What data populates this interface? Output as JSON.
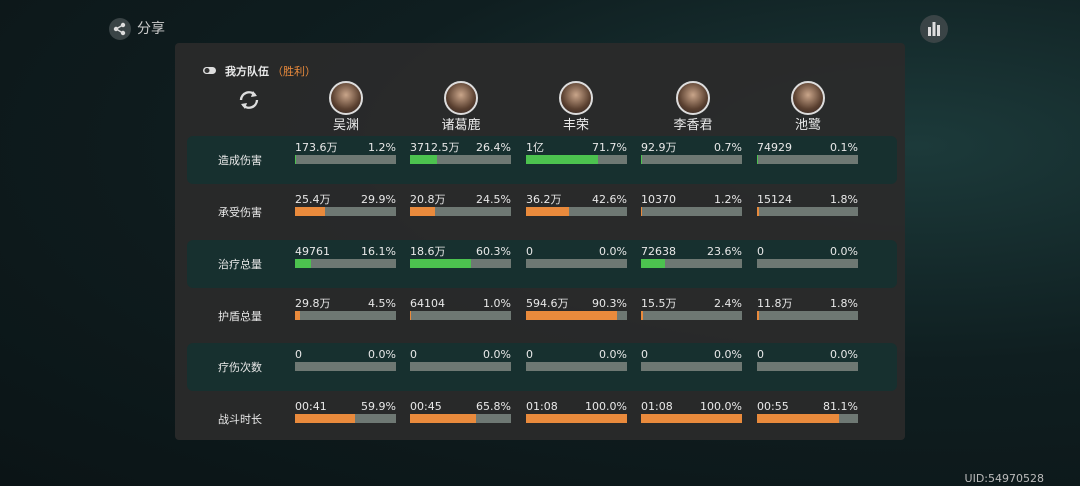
{
  "share": "分享",
  "uid": "UID:54970528",
  "team": {
    "title": "我方队伍",
    "result": "（胜利）"
  },
  "heroes": [
    "吴渊",
    "诸葛鹿",
    "丰荣",
    "李香君",
    "池鹭"
  ],
  "rows": [
    {
      "label": "造成伤害",
      "color": "#4cc24f",
      "cells": [
        {
          "value": "173.6万",
          "pct": 1.2,
          "pct_label": "1.2%"
        },
        {
          "value": "3712.5万",
          "pct": 26.4,
          "pct_label": "26.4%"
        },
        {
          "value": "1亿",
          "pct": 71.7,
          "pct_label": "71.7%"
        },
        {
          "value": "92.9万",
          "pct": 0.7,
          "pct_label": "0.7%"
        },
        {
          "value": "74929",
          "pct": 0.1,
          "pct_label": "0.1%"
        }
      ]
    },
    {
      "label": "承受伤害",
      "color": "#e98a3c",
      "cells": [
        {
          "value": "25.4万",
          "pct": 29.9,
          "pct_label": "29.9%"
        },
        {
          "value": "20.8万",
          "pct": 24.5,
          "pct_label": "24.5%"
        },
        {
          "value": "36.2万",
          "pct": 42.6,
          "pct_label": "42.6%"
        },
        {
          "value": "10370",
          "pct": 1.2,
          "pct_label": "1.2%"
        },
        {
          "value": "15124",
          "pct": 1.8,
          "pct_label": "1.8%"
        }
      ]
    },
    {
      "label": "治疗总量",
      "color": "#4cc24f",
      "cells": [
        {
          "value": "49761",
          "pct": 16.1,
          "pct_label": "16.1%"
        },
        {
          "value": "18.6万",
          "pct": 60.3,
          "pct_label": "60.3%"
        },
        {
          "value": "0",
          "pct": 0,
          "pct_label": "0.0%"
        },
        {
          "value": "72638",
          "pct": 23.6,
          "pct_label": "23.6%"
        },
        {
          "value": "0",
          "pct": 0,
          "pct_label": "0.0%"
        }
      ]
    },
    {
      "label": "护盾总量",
      "color": "#e98a3c",
      "cells": [
        {
          "value": "29.8万",
          "pct": 4.5,
          "pct_label": "4.5%"
        },
        {
          "value": "64104",
          "pct": 1.0,
          "pct_label": "1.0%"
        },
        {
          "value": "594.6万",
          "pct": 90.3,
          "pct_label": "90.3%"
        },
        {
          "value": "15.5万",
          "pct": 2.4,
          "pct_label": "2.4%"
        },
        {
          "value": "11.8万",
          "pct": 1.8,
          "pct_label": "1.8%"
        }
      ]
    },
    {
      "label": "疗伤次数",
      "color": "#e98a3c",
      "cells": [
        {
          "value": "0",
          "pct": 0,
          "pct_label": "0.0%"
        },
        {
          "value": "0",
          "pct": 0,
          "pct_label": "0.0%"
        },
        {
          "value": "0",
          "pct": 0,
          "pct_label": "0.0%"
        },
        {
          "value": "0",
          "pct": 0,
          "pct_label": "0.0%"
        },
        {
          "value": "0",
          "pct": 0,
          "pct_label": "0.0%"
        }
      ]
    },
    {
      "label": "战斗时长",
      "color": "#e98a3c",
      "cells": [
        {
          "value": "00:41",
          "pct": 59.9,
          "pct_label": "59.9%"
        },
        {
          "value": "00:45",
          "pct": 65.8,
          "pct_label": "65.8%"
        },
        {
          "value": "01:08",
          "pct": 100.0,
          "pct_label": "100.0%"
        },
        {
          "value": "01:08",
          "pct": 100.0,
          "pct_label": "100.0%"
        },
        {
          "value": "00:55",
          "pct": 81.1,
          "pct_label": "81.1%"
        }
      ]
    }
  ]
}
